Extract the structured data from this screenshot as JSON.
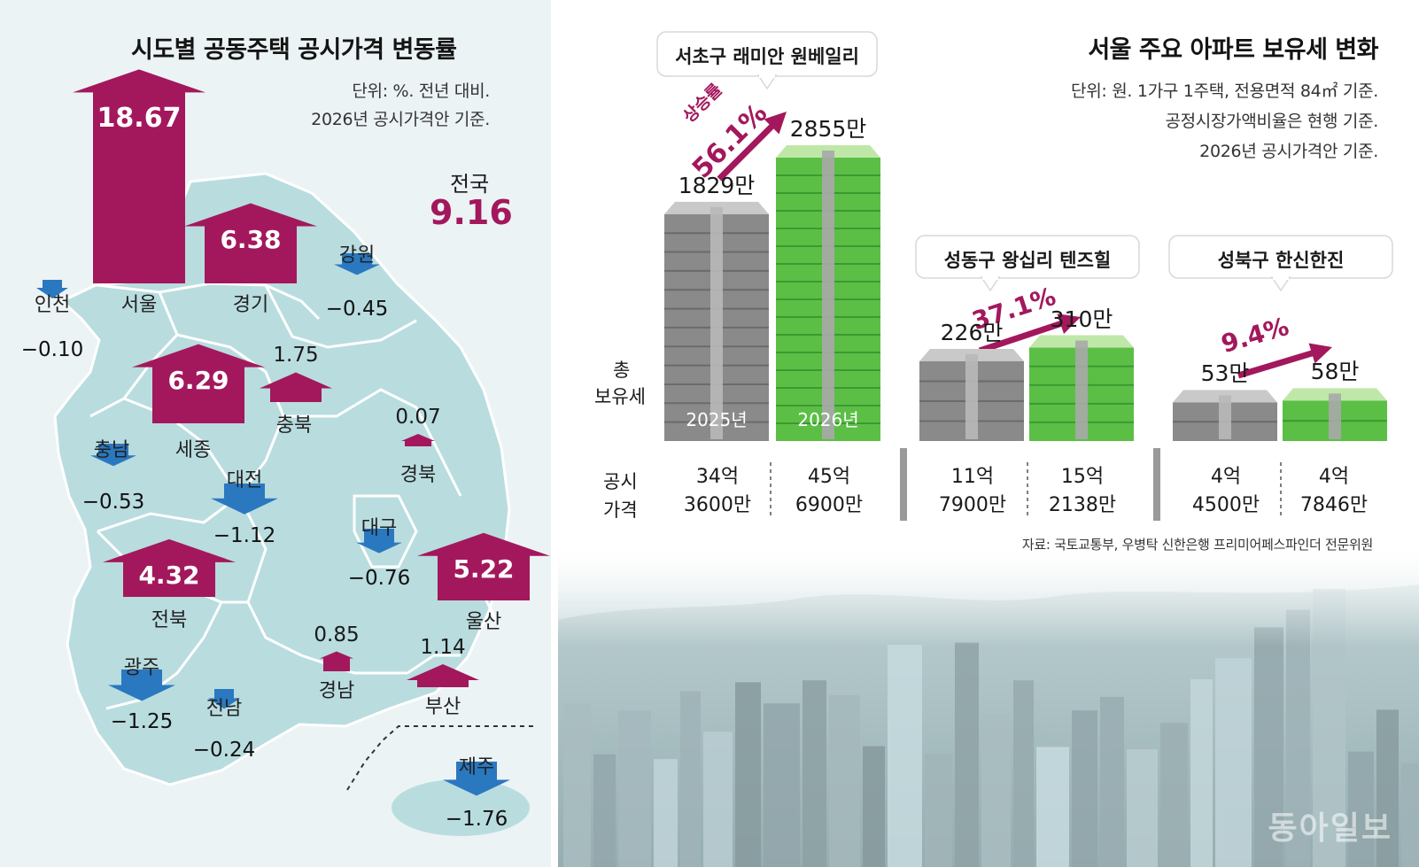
{
  "left": {
    "title": "시도별 공동주택 공시가격 변동률",
    "unit_note": "단위: %. 전년 대비.",
    "base_note": "2026년 공시가격안 기준.",
    "national": {
      "label": "전국",
      "value": "9.16"
    }
  },
  "right": {
    "title": "서울 주요 아파트 보유세 변화",
    "notes": [
      "단위: 원. 1가구 1주택, 전용면적 84㎡ 기준.",
      "공정시장가액비율은 현행 기준.",
      "2026년 공시가격안 기준."
    ],
    "row_label_tax": [
      "총",
      "보유세"
    ],
    "row_label_price": [
      "공시",
      "가격"
    ],
    "source": "자료: 국토교통부, 우병탁 신한은행 프리미어페스파인더 전문위원",
    "watermark": "동아일보"
  },
  "colors": {
    "increase": "#a3185c",
    "decrease": "#2a78c0",
    "map_land": "#b9dcdf",
    "map_line": "#ffffff",
    "bg_left": "#ecf3f5",
    "stack_2025": "#8a8a8a",
    "stack_2026": "#5cbf45"
  },
  "chart_data": [
    {
      "type": "map-bar",
      "title": "시도별 공동주택 공시가격 변동률",
      "unit": "%",
      "national": 9.16,
      "regions": [
        {
          "name": "서울",
          "value": 18.67,
          "label": "18.67"
        },
        {
          "name": "경기",
          "value": 6.38,
          "label": "6.38"
        },
        {
          "name": "강원",
          "value": -0.45,
          "label": "−0.45"
        },
        {
          "name": "인천",
          "value": -0.1,
          "label": "−0.10"
        },
        {
          "name": "세종",
          "value": 6.29,
          "label": "6.29"
        },
        {
          "name": "충북",
          "value": 1.75,
          "label": "1.75"
        },
        {
          "name": "경북",
          "value": 0.07,
          "label": "0.07"
        },
        {
          "name": "충남",
          "value": -0.53,
          "label": "−0.53"
        },
        {
          "name": "대전",
          "value": -1.12,
          "label": "−1.12"
        },
        {
          "name": "대구",
          "value": -0.76,
          "label": "−0.76"
        },
        {
          "name": "전북",
          "value": 4.32,
          "label": "4.32"
        },
        {
          "name": "울산",
          "value": 5.22,
          "label": "5.22"
        },
        {
          "name": "경남",
          "value": 0.85,
          "label": "0.85"
        },
        {
          "name": "부산",
          "value": 1.14,
          "label": "1.14"
        },
        {
          "name": "광주",
          "value": -1.25,
          "label": "−1.25"
        },
        {
          "name": "전남",
          "value": -0.24,
          "label": "−0.24"
        },
        {
          "name": "제주",
          "value": -1.76,
          "label": "−1.76"
        }
      ]
    },
    {
      "type": "bar",
      "title": "서울 주요 아파트 보유세 변화",
      "unit": "원",
      "complexes": [
        {
          "name": "서초구 래미안 원베일리",
          "growth": "56.1%",
          "growth_prefix": "상승률",
          "years": [
            {
              "year": "2025년",
              "tax": 1829,
              "tax_label": "1829만",
              "price": [
                "34억",
                "3600만"
              ]
            },
            {
              "year": "2026년",
              "tax": 2855,
              "tax_label": "2855만",
              "price": [
                "45억",
                "6900만"
              ]
            }
          ]
        },
        {
          "name": "성동구 왕십리 텐즈힐",
          "growth": "37.1%",
          "years": [
            {
              "tax": 226,
              "tax_label": "226만",
              "price": [
                "11억",
                "7900만"
              ]
            },
            {
              "tax": 310,
              "tax_label": "310만",
              "price": [
                "15억",
                "2138만"
              ]
            }
          ]
        },
        {
          "name": "성북구 한신한진",
          "growth": "9.4%",
          "years": [
            {
              "tax": 53,
              "tax_label": "53만",
              "price": [
                "4억",
                "4500만"
              ]
            },
            {
              "tax": 58,
              "tax_label": "58만",
              "price": [
                "4억",
                "7846만"
              ]
            }
          ]
        }
      ]
    }
  ]
}
